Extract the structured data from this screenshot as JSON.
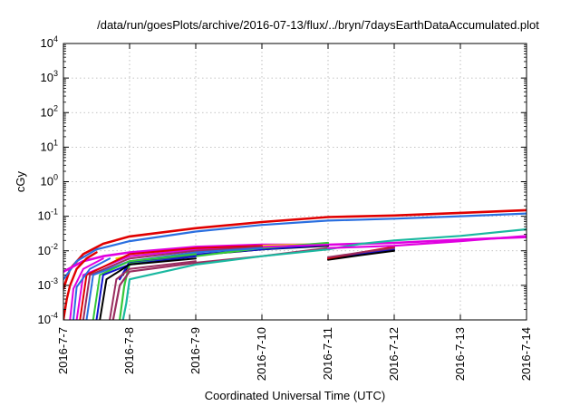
{
  "chart_data": {
    "type": "line",
    "title": "/data/run/goesPlots/archive/2016-07-13/flux/../bryn/7daysEarthDataAccumulated.plot",
    "xlabel": "Coordinated Universal Time (UTC)",
    "ylabel": "cGy",
    "x_scale": "time",
    "y_scale": "log",
    "xlim": [
      "2016-07-07",
      "2016-07-14"
    ],
    "ylim": [
      0.0001,
      10000
    ],
    "x_ticks": [
      "2016-7-7",
      "2016-7-8",
      "2016-7-9",
      "2016-7-10",
      "2016-7-11",
      "2016-7-12",
      "2016-7-13",
      "2016-7-14"
    ],
    "y_ticks": [
      {
        "value": 0.0001,
        "base": "10",
        "exp": "-4"
      },
      {
        "value": 0.001,
        "base": "10",
        "exp": "-3"
      },
      {
        "value": 0.01,
        "base": "10",
        "exp": "-2"
      },
      {
        "value": 0.1,
        "base": "10",
        "exp": "-1"
      },
      {
        "value": 1,
        "base": "10",
        "exp": "0"
      },
      {
        "value": 10,
        "base": "10",
        "exp": "1"
      },
      {
        "value": 100,
        "base": "10",
        "exp": "2"
      },
      {
        "value": 1000,
        "base": "10",
        "exp": "3"
      },
      {
        "value": 10000,
        "base": "10",
        "exp": "4"
      }
    ],
    "grid": true,
    "legend": "none",
    "series": [
      {
        "color": "#e00000",
        "width": 2.6,
        "points": [
          [
            0.0,
            0.0008
          ],
          [
            0.1,
            0.003
          ],
          [
            0.3,
            0.008
          ],
          [
            0.6,
            0.016
          ],
          [
            1.0,
            0.026
          ],
          [
            2.0,
            0.045
          ],
          [
            3.0,
            0.068
          ],
          [
            4.0,
            0.095
          ],
          [
            5.0,
            0.105
          ],
          [
            6.0,
            0.125
          ],
          [
            7.0,
            0.15
          ]
        ]
      },
      {
        "color": "#2a6fe0",
        "width": 2.2,
        "points": [
          [
            0.0,
            0.0015
          ],
          [
            0.2,
            0.005
          ],
          [
            0.5,
            0.011
          ],
          [
            1.0,
            0.019
          ],
          [
            2.0,
            0.036
          ],
          [
            3.0,
            0.056
          ],
          [
            4.0,
            0.075
          ],
          [
            5.0,
            0.085
          ],
          [
            6.0,
            0.1
          ],
          [
            7.0,
            0.12
          ]
        ]
      },
      {
        "color": "#e000e0",
        "width": 2.6,
        "points": [
          [
            0.0,
            0.0025
          ],
          [
            0.3,
            0.005
          ],
          [
            0.6,
            0.007
          ],
          [
            1.0,
            0.009
          ],
          [
            2.0,
            0.013
          ],
          [
            3.0,
            0.015
          ],
          [
            4.0,
            0.015
          ],
          [
            5.0,
            0.017
          ],
          [
            6.0,
            0.021
          ],
          [
            7.0,
            0.025
          ]
        ]
      },
      {
        "color": "#1ab8a0",
        "width": 2.2,
        "points": [
          [
            4.0,
            0.011
          ],
          [
            4.5,
            0.016
          ],
          [
            5.0,
            0.02
          ],
          [
            6.0,
            0.027
          ],
          [
            7.0,
            0.042
          ]
        ]
      },
      {
        "color": "#f0e000",
        "width": 2.2,
        "points": [
          [
            0.8,
            0.006
          ],
          [
            1.0,
            0.007
          ],
          [
            2.0,
            0.011
          ],
          [
            3.0,
            0.014
          ],
          [
            4.0,
            0.016
          ]
        ]
      },
      {
        "color": "#000000",
        "width": 2.2,
        "points": [
          [
            0.9,
            0.002
          ],
          [
            1.0,
            0.0045
          ],
          [
            1.5,
            0.006
          ],
          [
            2.0,
            0.0075
          ],
          [
            3.0,
            0.011
          ],
          [
            4.0,
            0.014
          ]
        ]
      },
      {
        "color": "#1010d0",
        "width": 2.2,
        "points": [
          [
            0.85,
            0.0015
          ],
          [
            1.0,
            0.0048
          ],
          [
            2.0,
            0.0078
          ],
          [
            3.0,
            0.011
          ],
          [
            4.0,
            0.015
          ]
        ]
      },
      {
        "color": "#34c838",
        "width": 2.2,
        "points": [
          [
            0.85,
            0.0001
          ],
          [
            0.92,
            0.001
          ],
          [
            1.0,
            0.0042
          ],
          [
            2.0,
            0.007
          ],
          [
            3.0,
            0.012
          ],
          [
            4.0,
            0.017
          ]
        ]
      },
      {
        "color": "#9a2e60",
        "width": 2.2,
        "points": [
          [
            0.75,
            0.0001
          ],
          [
            0.85,
            0.001
          ],
          [
            1.0,
            0.0025
          ],
          [
            2.0,
            0.0045
          ],
          [
            3.0,
            0.007
          ],
          [
            4.0,
            0.012
          ]
        ]
      },
      {
        "color": "#1ab8a0",
        "width": 2.2,
        "points": [
          [
            0.9,
            0.0001
          ],
          [
            0.95,
            0.0003
          ],
          [
            1.0,
            0.0015
          ],
          [
            2.0,
            0.004
          ],
          [
            3.0,
            0.007
          ],
          [
            4.0,
            0.011
          ]
        ]
      },
      {
        "color": "#e000e0",
        "width": 2.0,
        "points": [
          [
            0.2,
            0.0001
          ],
          [
            0.3,
            0.002
          ],
          [
            1.0,
            0.007
          ],
          [
            2.0,
            0.011
          ],
          [
            3.0,
            0.013
          ],
          [
            4.0,
            0.015
          ]
        ]
      },
      {
        "color": "#e00000",
        "width": 2.0,
        "points": [
          [
            0.25,
            0.0001
          ],
          [
            0.35,
            0.002
          ],
          [
            1.0,
            0.008
          ],
          [
            2.0,
            0.012
          ],
          [
            3.0,
            0.014
          ]
        ]
      },
      {
        "color": "#9a2e60",
        "width": 2.0,
        "points": [
          [
            0.3,
            0.0001
          ],
          [
            0.4,
            0.002
          ],
          [
            1.0,
            0.006
          ],
          [
            2.0,
            0.01
          ],
          [
            3.0,
            0.013
          ]
        ]
      },
      {
        "color": "#2a6fe0",
        "width": 2.0,
        "points": [
          [
            0.35,
            0.0001
          ],
          [
            0.45,
            0.002
          ],
          [
            1.0,
            0.005
          ],
          [
            2.0,
            0.009
          ],
          [
            3.0,
            0.012
          ]
        ]
      },
      {
        "color": "#34c838",
        "width": 2.0,
        "points": [
          [
            0.45,
            0.0001
          ],
          [
            0.55,
            0.002
          ],
          [
            1.0,
            0.005
          ],
          [
            2.0,
            0.008
          ]
        ]
      },
      {
        "color": "#1010d0",
        "width": 2.0,
        "points": [
          [
            0.5,
            0.0001
          ],
          [
            0.6,
            0.002
          ],
          [
            1.0,
            0.004
          ],
          [
            2.0,
            0.007
          ]
        ]
      },
      {
        "color": "#000000",
        "width": 2.0,
        "points": [
          [
            0.55,
            0.0001
          ],
          [
            0.65,
            0.0015
          ],
          [
            1.0,
            0.004
          ],
          [
            2.0,
            0.006
          ]
        ]
      },
      {
        "color": "#9a2e60",
        "width": 2.0,
        "points": [
          [
            0.7,
            0.0001
          ],
          [
            0.8,
            0.0015
          ],
          [
            1.0,
            0.003
          ],
          [
            2.0,
            0.005
          ]
        ]
      },
      {
        "color": "#1010d0",
        "width": 2.0,
        "points": [
          [
            4.0,
            0.006
          ],
          [
            4.5,
            0.008
          ],
          [
            5.0,
            0.011
          ]
        ]
      },
      {
        "color": "#000000",
        "width": 2.0,
        "points": [
          [
            4.0,
            0.0055
          ],
          [
            4.5,
            0.0075
          ],
          [
            5.0,
            0.01
          ]
        ]
      },
      {
        "color": "#e00000",
        "width": 2.0,
        "points": [
          [
            4.0,
            0.006
          ],
          [
            4.5,
            0.009
          ],
          [
            5.0,
            0.013
          ]
        ]
      },
      {
        "color": "#9a2e60",
        "width": 2.0,
        "points": [
          [
            4.0,
            0.0065
          ],
          [
            4.5,
            0.009
          ],
          [
            5.0,
            0.012
          ]
        ]
      },
      {
        "color": "#e000e0",
        "width": 2.2,
        "points": [
          [
            4.0,
            0.012
          ],
          [
            5.0,
            0.014
          ],
          [
            6.0,
            0.019
          ],
          [
            7.0,
            0.027
          ]
        ]
      },
      {
        "color": "#e00000",
        "width": 2.4,
        "points": [
          [
            0.0,
            0.0001
          ],
          [
            0.05,
            0.0004
          ],
          [
            0.1,
            0.001
          ],
          [
            0.2,
            0.003
          ],
          [
            0.35,
            0.006
          ],
          [
            0.5,
            0.009
          ]
        ]
      },
      {
        "color": "#e000e0",
        "width": 2.0,
        "points": [
          [
            0.1,
            0.0001
          ],
          [
            0.15,
            0.0008
          ],
          [
            0.3,
            0.003
          ],
          [
            0.6,
            0.006
          ]
        ]
      },
      {
        "color": "#2a6fe0",
        "width": 2.0,
        "points": [
          [
            0.15,
            0.0001
          ],
          [
            0.2,
            0.0009
          ],
          [
            0.4,
            0.003
          ],
          [
            0.7,
            0.006
          ]
        ]
      }
    ]
  }
}
